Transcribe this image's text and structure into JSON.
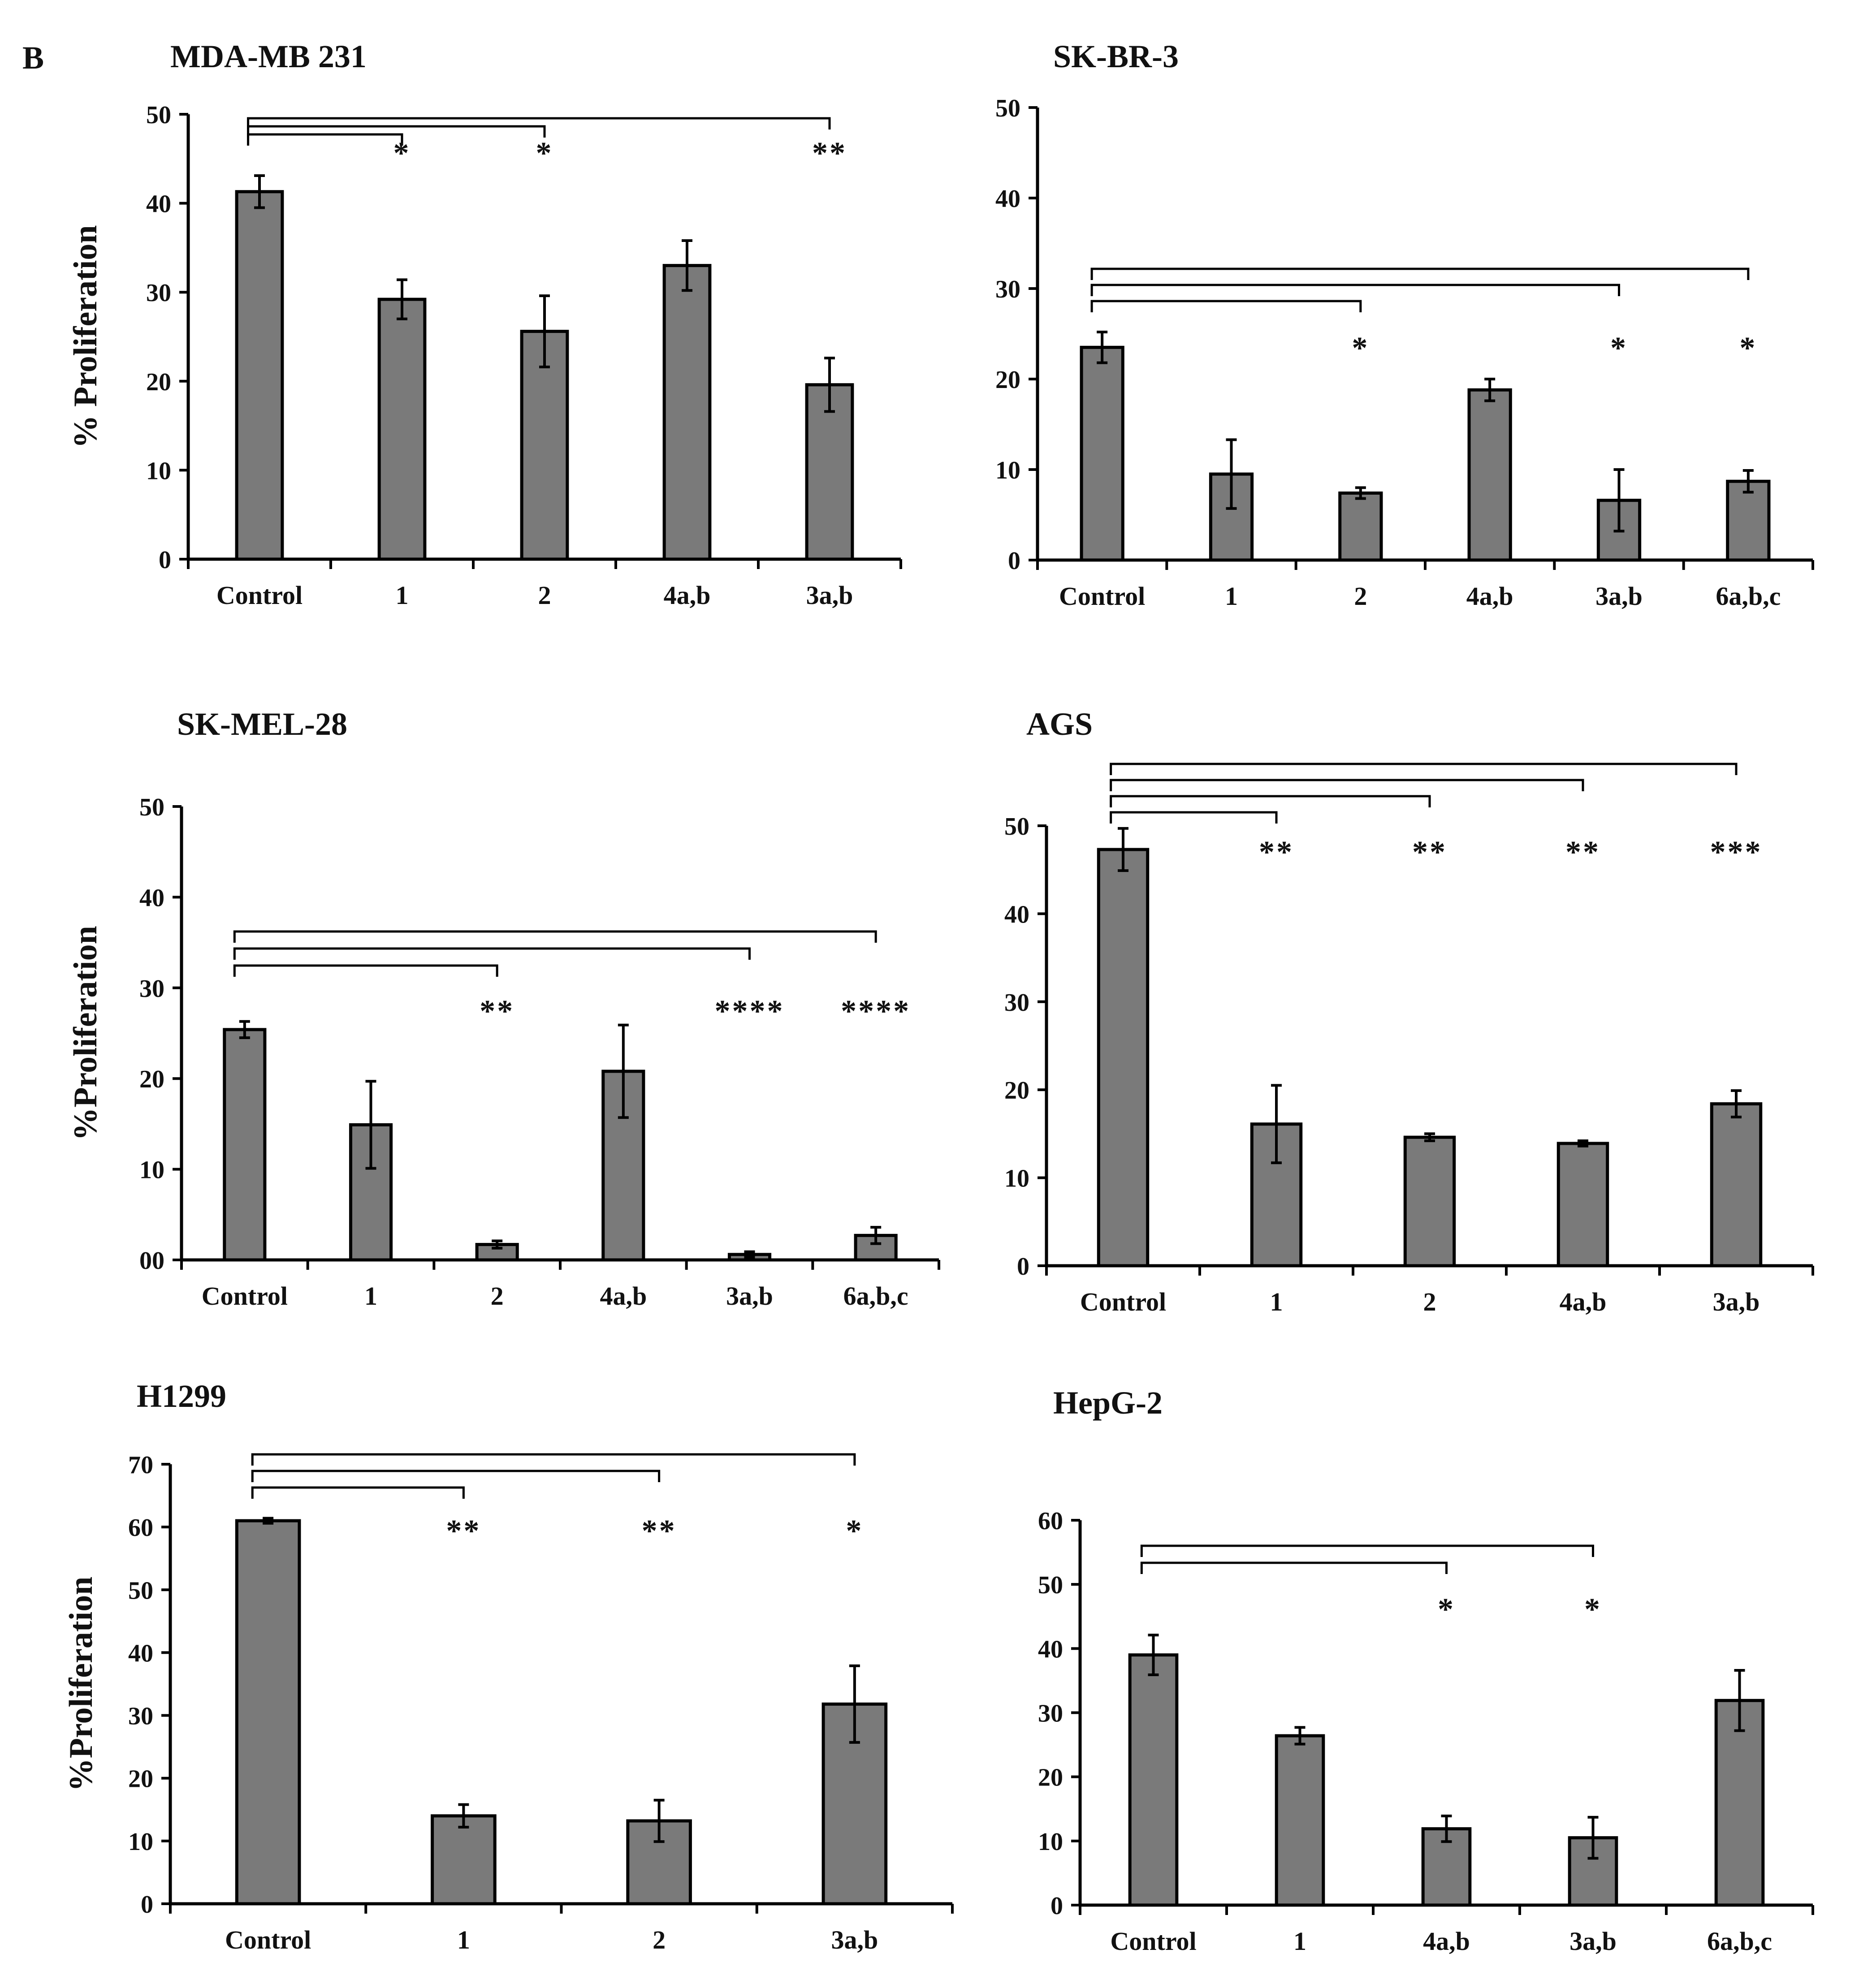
{
  "figure": {
    "panel_label": "B",
    "colors": {
      "bar_fill": "#7a7a7a",
      "bar_stroke": "#000000",
      "axis": "#000000"
    }
  },
  "chart_data": [
    {
      "type": "bar",
      "title": "MDA-MB 231",
      "ylabel": "% Proliferation",
      "xlabel": "",
      "ylim": [
        0,
        50
      ],
      "yticks": [
        0,
        10,
        20,
        30,
        40,
        50
      ],
      "ytick_labels": [
        "0",
        "10",
        "20",
        "30",
        "40",
        "50"
      ],
      "categories": [
        "Control",
        "1",
        "2",
        "4a,b",
        "3a,b"
      ],
      "values": [
        41.3,
        29.2,
        25.6,
        33,
        19.6
      ],
      "errors": [
        1.8,
        2.2,
        4,
        2.8,
        3
      ],
      "significance": [
        {
          "target": "1",
          "label": "*"
        },
        {
          "target": "2",
          "label": "*"
        },
        {
          "target": "3a,b",
          "label": "**"
        }
      ]
    },
    {
      "type": "bar",
      "title": "SK-BR-3",
      "ylabel": "",
      "xlabel": "",
      "ylim": [
        0,
        50
      ],
      "yticks": [
        0,
        10,
        20,
        30,
        40,
        50
      ],
      "ytick_labels": [
        "0",
        "10",
        "20",
        "30",
        "40",
        "50"
      ],
      "categories": [
        "Control",
        "1",
        "2",
        "4a,b",
        "3a,b",
        "6a,b,c"
      ],
      "values": [
        23.5,
        9.5,
        7.4,
        18.8,
        6.6,
        8.7
      ],
      "errors": [
        1.7,
        3.8,
        0.6,
        1.2,
        3.4,
        1.2
      ],
      "significance": [
        {
          "target": "2",
          "label": "*"
        },
        {
          "target": "3a,b",
          "label": "*"
        },
        {
          "target": "6a,b,c",
          "label": "*"
        }
      ]
    },
    {
      "type": "bar",
      "title": "SK-MEL-28",
      "ylabel": "%Proliferation",
      "xlabel": "",
      "ylim": [
        0,
        50
      ],
      "yticks": [
        0,
        10,
        20,
        30,
        40,
        50
      ],
      "ytick_labels": [
        "00",
        "10",
        "20",
        "30",
        "40",
        "50"
      ],
      "categories": [
        "Control",
        "1",
        "2",
        "4a,b",
        "3a,b",
        "6a,b,c"
      ],
      "values": [
        25.4,
        14.9,
        1.7,
        20.8,
        0.6,
        2.7
      ],
      "errors": [
        0.9,
        4.8,
        0.4,
        5.1,
        0.3,
        0.9
      ],
      "significance": [
        {
          "target": "2",
          "label": "**"
        },
        {
          "target": "3a,b",
          "label": "****"
        },
        {
          "target": "6a,b,c",
          "label": "****"
        }
      ]
    },
    {
      "type": "bar",
      "title": "AGS",
      "ylabel": "",
      "xlabel": "",
      "ylim": [
        0,
        50
      ],
      "yticks": [
        0,
        10,
        20,
        30,
        40,
        50
      ],
      "ytick_labels": [
        "0",
        "10",
        "20",
        "30",
        "40",
        "50"
      ],
      "categories": [
        "Control",
        "1",
        "2",
        "4a,b",
        "3a,b"
      ],
      "values": [
        47.3,
        16.1,
        14.6,
        13.9,
        18.4
      ],
      "errors": [
        2.4,
        4.4,
        0.4,
        0.3,
        1.5
      ],
      "significance": [
        {
          "target": "1",
          "label": "**"
        },
        {
          "target": "2",
          "label": "**"
        },
        {
          "target": "4a,b",
          "label": "**"
        },
        {
          "target": "3a,b",
          "label": "***"
        }
      ]
    },
    {
      "type": "bar",
      "title": "H1299",
      "ylabel": "%Proliferation",
      "xlabel": "",
      "ylim": [
        0,
        70
      ],
      "yticks": [
        0,
        10,
        20,
        30,
        40,
        50,
        60,
        70
      ],
      "ytick_labels": [
        "0",
        "10",
        "20",
        "30",
        "40",
        "50",
        "60",
        "70"
      ],
      "categories": [
        "Control",
        "1",
        "2",
        "3a,b"
      ],
      "values": [
        61,
        14,
        13.2,
        31.8
      ],
      "errors": [
        0.4,
        1.8,
        3.3,
        6.1
      ],
      "significance": [
        {
          "target": "1",
          "label": "**"
        },
        {
          "target": "2",
          "label": "**"
        },
        {
          "target": "3a,b",
          "label": "*"
        }
      ]
    },
    {
      "type": "bar",
      "title": "HepG-2",
      "ylabel": "",
      "xlabel": "",
      "ylim": [
        0,
        60
      ],
      "yticks": [
        0,
        10,
        20,
        30,
        40,
        50,
        60
      ],
      "ytick_labels": [
        "0",
        "10",
        "20",
        "30",
        "40",
        "50",
        "60"
      ],
      "categories": [
        "Control",
        "1",
        "4a,b",
        "3a,b",
        "6a,b,c"
      ],
      "values": [
        39,
        26.4,
        11.9,
        10.5,
        31.9
      ],
      "errors": [
        3.1,
        1.3,
        2,
        3.2,
        4.7
      ],
      "significance": [
        {
          "target": "4a,b",
          "label": "*"
        },
        {
          "target": "3a,b",
          "label": "*"
        }
      ]
    }
  ]
}
